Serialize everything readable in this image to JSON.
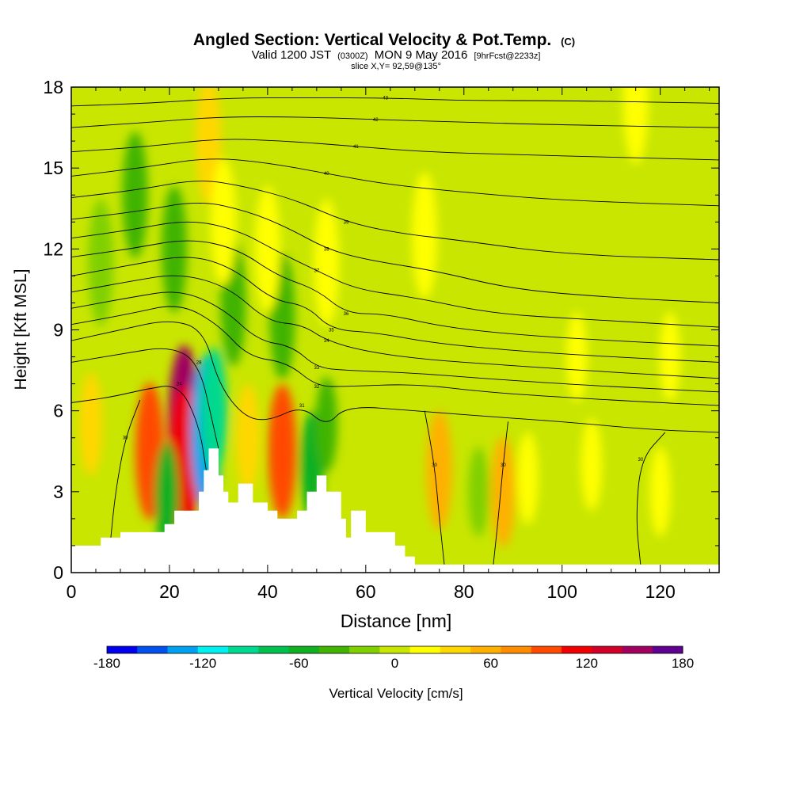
{
  "chart_data": {
    "type": "heatmap",
    "title": {
      "main": "Angled Section: Vertical Velocity & Pot.Temp.",
      "main_unit": "(C)",
      "valid_prefix": "Valid 1200 JST",
      "valid_utc": "(0300Z)",
      "valid_date": "MON 9 May 2016",
      "forecast": "[9hrFcst@2233z]",
      "slice": "slice X,Y= 92,59@135°"
    },
    "xlabel": "Distance [nm]",
    "ylabel": "Height [Kft MSL]",
    "xlim": [
      0,
      132
    ],
    "ylim": [
      0,
      18
    ],
    "x_ticks": [
      "0",
      "20",
      "40",
      "60",
      "80",
      "100",
      "120"
    ],
    "y_ticks": [
      "0",
      "3",
      "6",
      "9",
      "12",
      "15",
      "18"
    ],
    "grid": false,
    "colorbar": {
      "label": "Vertical Velocity [cm/s]",
      "range": [
        -180,
        180
      ],
      "step": 20,
      "tick_labels": [
        "-180",
        "-120",
        "-60",
        "0",
        "60",
        "120",
        "180"
      ],
      "colors": [
        "#0000ee",
        "#0050ee",
        "#00a0f0",
        "#00f0f0",
        "#00d890",
        "#00c050",
        "#10b020",
        "#40b400",
        "#80d000",
        "#c8e600",
        "#ffff00",
        "#ffd700",
        "#ffb000",
        "#ff8c00",
        "#ff4a00",
        "#f00000",
        "#d00028",
        "#a00060",
        "#600090"
      ]
    },
    "background_value": 8,
    "terrain": [
      [
        0,
        1.0
      ],
      [
        6,
        1.0
      ],
      [
        6,
        1.3
      ],
      [
        10,
        1.3
      ],
      [
        10,
        1.5
      ],
      [
        19,
        1.5
      ],
      [
        19,
        1.8
      ],
      [
        21,
        1.8
      ],
      [
        21,
        2.3
      ],
      [
        26,
        2.3
      ],
      [
        26,
        3.0
      ],
      [
        27,
        3.0
      ],
      [
        27,
        3.8
      ],
      [
        28,
        3.8
      ],
      [
        28,
        4.6
      ],
      [
        30,
        4.6
      ],
      [
        30,
        3.6
      ],
      [
        31,
        3.6
      ],
      [
        31,
        3.0
      ],
      [
        32,
        3.0
      ],
      [
        32,
        2.6
      ],
      [
        34,
        2.6
      ],
      [
        34,
        3.3
      ],
      [
        37,
        3.3
      ],
      [
        37,
        2.6
      ],
      [
        40,
        2.6
      ],
      [
        40,
        2.3
      ],
      [
        42,
        2.3
      ],
      [
        42,
        2.0
      ],
      [
        46,
        2.0
      ],
      [
        46,
        2.3
      ],
      [
        48,
        2.3
      ],
      [
        48,
        3.0
      ],
      [
        50,
        3.0
      ],
      [
        50,
        3.6
      ],
      [
        52,
        3.6
      ],
      [
        52,
        3.0
      ],
      [
        55,
        3.0
      ],
      [
        55,
        2.0
      ],
      [
        56,
        2.0
      ],
      [
        56,
        1.3
      ],
      [
        57,
        1.3
      ],
      [
        57,
        2.3
      ],
      [
        60,
        2.3
      ],
      [
        60,
        1.5
      ],
      [
        66,
        1.5
      ],
      [
        66,
        1.0
      ],
      [
        68,
        1.0
      ],
      [
        68,
        0.6
      ],
      [
        70,
        0.6
      ],
      [
        70,
        0.3
      ],
      [
        132,
        0.3
      ]
    ],
    "velocity_features": [
      {
        "x": 4,
        "z": 5.5,
        "value": 45,
        "label": "updraft"
      },
      {
        "x": 16,
        "z": 4.5,
        "value": 110,
        "label": "updraft"
      },
      {
        "x": 23,
        "z": 5.5,
        "value": 170,
        "label": "updraft core"
      },
      {
        "x": 23,
        "z": 4.2,
        "value": 130,
        "label": "updraft"
      },
      {
        "x": 19.5,
        "z": 2.8,
        "value": -60,
        "label": "downdraft"
      },
      {
        "x": 27.5,
        "z": 5.2,
        "value": -140,
        "label": "downdraft core"
      },
      {
        "x": 29,
        "z": 6.0,
        "value": -90,
        "label": "downdraft"
      },
      {
        "x": 36,
        "z": 5.0,
        "value": 55,
        "label": "updraft"
      },
      {
        "x": 43,
        "z": 4.5,
        "value": 105,
        "label": "updraft"
      },
      {
        "x": 49,
        "z": 4.0,
        "value": -50,
        "label": "downdraft"
      },
      {
        "x": 52,
        "z": 5.5,
        "value": -30,
        "label": "downdraft"
      },
      {
        "x": 75,
        "z": 3.8,
        "value": 75,
        "label": "updraft"
      },
      {
        "x": 88,
        "z": 3.0,
        "value": 60,
        "label": "updraft"
      },
      {
        "x": 83,
        "z": 3.0,
        "value": -20,
        "label": "downdraft"
      },
      {
        "x": 93,
        "z": 3.5,
        "value": 25,
        "label": "updraft"
      },
      {
        "x": 106,
        "z": 4.0,
        "value": 25,
        "label": "updraft"
      },
      {
        "x": 120,
        "z": 3.0,
        "value": 20,
        "label": "updraft"
      },
      {
        "x": 13,
        "z": 14.0,
        "value": -40,
        "label": "downdraft"
      },
      {
        "x": 21,
        "z": 12.0,
        "value": -35,
        "label": "downdraft"
      },
      {
        "x": 33,
        "z": 10.0,
        "value": -35,
        "label": "downdraft"
      },
      {
        "x": 43,
        "z": 9.5,
        "value": -30,
        "label": "downdraft"
      },
      {
        "x": 6,
        "z": 11.5,
        "value": -20,
        "label": "downdraft"
      },
      {
        "x": 28,
        "z": 16.0,
        "value": 40,
        "label": "updraft"
      },
      {
        "x": 31,
        "z": 13.0,
        "value": 25,
        "label": "updraft"
      },
      {
        "x": 40,
        "z": 12.0,
        "value": 20,
        "label": "updraft"
      },
      {
        "x": 52,
        "z": 11.5,
        "value": 20,
        "label": "updraft"
      },
      {
        "x": 72,
        "z": 12.5,
        "value": 20,
        "label": "updraft"
      },
      {
        "x": 103,
        "z": 8.0,
        "value": 20,
        "label": "updraft"
      },
      {
        "x": 122,
        "z": 8.0,
        "value": 20,
        "label": "updraft"
      },
      {
        "x": 115,
        "z": 17.5,
        "value": 25,
        "label": "updraft"
      }
    ],
    "isotherms": [
      {
        "label": "24",
        "points": [
          [
            0,
            6.3
          ],
          [
            8,
            6.5
          ],
          [
            15,
            6.8
          ],
          [
            22,
            7.0
          ],
          [
            26,
            5.5
          ],
          [
            27.5,
            3.8
          ]
        ]
      },
      {
        "label": "28",
        "points": [
          [
            0,
            7.8
          ],
          [
            10,
            8.1
          ],
          [
            20,
            8.4
          ],
          [
            26,
            7.8
          ],
          [
            29,
            5.4
          ],
          [
            30,
            4.6
          ]
        ]
      },
      {
        "label": "31",
        "points": [
          [
            0,
            8.6
          ],
          [
            10,
            9.0
          ],
          [
            20,
            9.4
          ],
          [
            27,
            9.0
          ],
          [
            30,
            7.0
          ],
          [
            35,
            5.8
          ],
          [
            40,
            5.6
          ],
          [
            47,
            6.2
          ],
          [
            52,
            5.4
          ],
          [
            56,
            6.2
          ],
          [
            70,
            6.0
          ],
          [
            84,
            5.8
          ],
          [
            100,
            5.6
          ],
          [
            118,
            5.3
          ],
          [
            132,
            5.2
          ]
        ]
      },
      {
        "label": "32",
        "points": [
          [
            0,
            9.2
          ],
          [
            12,
            9.6
          ],
          [
            22,
            10.0
          ],
          [
            30,
            9.2
          ],
          [
            36,
            8.0
          ],
          [
            44,
            7.8
          ],
          [
            50,
            6.9
          ],
          [
            56,
            6.9
          ],
          [
            70,
            7.0
          ],
          [
            84,
            6.7
          ],
          [
            100,
            6.5
          ],
          [
            120,
            6.3
          ],
          [
            132,
            6.2
          ]
        ]
      },
      {
        "label": "33",
        "points": [
          [
            0,
            9.8
          ],
          [
            12,
            10.2
          ],
          [
            22,
            10.5
          ],
          [
            31,
            9.8
          ],
          [
            38,
            8.6
          ],
          [
            45,
            8.4
          ],
          [
            50,
            7.6
          ],
          [
            56,
            7.5
          ],
          [
            70,
            7.4
          ],
          [
            84,
            7.2
          ],
          [
            100,
            7.0
          ],
          [
            120,
            6.8
          ],
          [
            132,
            6.7
          ]
        ]
      },
      {
        "label": "34",
        "points": [
          [
            0,
            10.4
          ],
          [
            12,
            10.8
          ],
          [
            22,
            11.1
          ],
          [
            32,
            10.6
          ],
          [
            40,
            9.3
          ],
          [
            47,
            9.2
          ],
          [
            52,
            8.6
          ],
          [
            60,
            8.2
          ],
          [
            72,
            7.9
          ],
          [
            88,
            7.7
          ],
          [
            104,
            7.5
          ],
          [
            132,
            7.2
          ]
        ]
      },
      {
        "label": "35",
        "points": [
          [
            0,
            11.0
          ],
          [
            12,
            11.4
          ],
          [
            24,
            11.8
          ],
          [
            33,
            11.3
          ],
          [
            41,
            10.1
          ],
          [
            48,
            9.9
          ],
          [
            53,
            9.0
          ],
          [
            62,
            8.9
          ],
          [
            74,
            8.5
          ],
          [
            92,
            8.2
          ],
          [
            110,
            8.0
          ],
          [
            132,
            7.8
          ]
        ]
      },
      {
        "label": "36",
        "points": [
          [
            0,
            11.7
          ],
          [
            12,
            12.0
          ],
          [
            24,
            12.4
          ],
          [
            34,
            12.0
          ],
          [
            42,
            11.0
          ],
          [
            50,
            10.5
          ],
          [
            56,
            9.6
          ],
          [
            64,
            9.6
          ],
          [
            76,
            9.1
          ],
          [
            92,
            8.8
          ],
          [
            110,
            8.6
          ],
          [
            132,
            8.4
          ]
        ]
      },
      {
        "label": "37",
        "points": [
          [
            0,
            12.4
          ],
          [
            12,
            12.7
          ],
          [
            24,
            13.1
          ],
          [
            34,
            12.7
          ],
          [
            42,
            11.9
          ],
          [
            50,
            11.2
          ],
          [
            58,
            10.5
          ],
          [
            70,
            10.2
          ],
          [
            86,
            9.6
          ],
          [
            104,
            9.4
          ],
          [
            132,
            9.1
          ]
        ]
      },
      {
        "label": "38",
        "points": [
          [
            0,
            13.1
          ],
          [
            14,
            13.4
          ],
          [
            26,
            13.8
          ],
          [
            36,
            13.4
          ],
          [
            44,
            12.8
          ],
          [
            52,
            12.0
          ],
          [
            60,
            11.6
          ],
          [
            74,
            11.2
          ],
          [
            90,
            10.5
          ],
          [
            110,
            10.2
          ],
          [
            132,
            10.0
          ]
        ]
      },
      {
        "label": "39",
        "points": [
          [
            0,
            13.9
          ],
          [
            14,
            14.2
          ],
          [
            26,
            14.6
          ],
          [
            36,
            14.3
          ],
          [
            46,
            13.8
          ],
          [
            56,
            13.0
          ],
          [
            66,
            12.6
          ],
          [
            80,
            12.3
          ],
          [
            100,
            11.8
          ],
          [
            132,
            11.6
          ]
        ]
      },
      {
        "label": "40",
        "points": [
          [
            0,
            14.7
          ],
          [
            14,
            15.0
          ],
          [
            28,
            15.4
          ],
          [
            40,
            15.2
          ],
          [
            52,
            14.8
          ],
          [
            64,
            14.4
          ],
          [
            80,
            14.1
          ],
          [
            100,
            13.8
          ],
          [
            132,
            13.6
          ]
        ]
      },
      {
        "label": "41",
        "points": [
          [
            0,
            15.6
          ],
          [
            16,
            15.8
          ],
          [
            30,
            16.1
          ],
          [
            44,
            16.0
          ],
          [
            58,
            15.8
          ],
          [
            72,
            15.6
          ],
          [
            90,
            15.5
          ],
          [
            110,
            15.4
          ],
          [
            132,
            15.3
          ]
        ]
      },
      {
        "label": "42",
        "points": [
          [
            0,
            16.5
          ],
          [
            16,
            16.7
          ],
          [
            30,
            16.9
          ],
          [
            46,
            16.9
          ],
          [
            62,
            16.8
          ],
          [
            80,
            16.7
          ],
          [
            100,
            16.6
          ],
          [
            132,
            16.5
          ]
        ]
      },
      {
        "label": "43",
        "points": [
          [
            0,
            17.3
          ],
          [
            16,
            17.4
          ],
          [
            32,
            17.6
          ],
          [
            48,
            17.6
          ],
          [
            64,
            17.6
          ],
          [
            80,
            17.5
          ],
          [
            100,
            17.5
          ],
          [
            132,
            17.4
          ]
        ]
      },
      {
        "label": "30",
        "points": [
          [
            8,
            1.2
          ],
          [
            9,
            3.0
          ],
          [
            11,
            5.0
          ],
          [
            14,
            6.4
          ]
        ]
      },
      {
        "label": "30",
        "points": [
          [
            86,
            0.3
          ],
          [
            87,
            2.0
          ],
          [
            88,
            4.0
          ],
          [
            89,
            5.6
          ]
        ]
      },
      {
        "label": "30",
        "points": [
          [
            76,
            0.3
          ],
          [
            75,
            2.0
          ],
          [
            74,
            4.0
          ],
          [
            72,
            6.0
          ]
        ]
      },
      {
        "label": "30",
        "points": [
          [
            116,
            0.3
          ],
          [
            115,
            2.0
          ],
          [
            116,
            4.2
          ],
          [
            121,
            5.2
          ]
        ]
      }
    ]
  }
}
